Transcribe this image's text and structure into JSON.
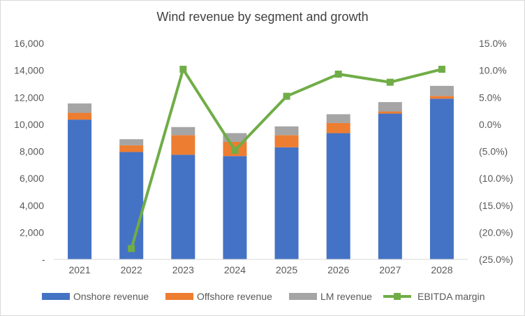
{
  "chart_data": {
    "type": "bar",
    "title": "Wind revenue by segment and growth",
    "categories": [
      "2021",
      "2022",
      "2023",
      "2024",
      "2025",
      "2026",
      "2027",
      "2028"
    ],
    "stacked": true,
    "series": [
      {
        "name": "Onshore revenue",
        "values": [
          10350,
          7950,
          7750,
          7650,
          8300,
          9350,
          10800,
          11900
        ],
        "color": "#4472C4"
      },
      {
        "name": "Offshore revenue",
        "values": [
          500,
          500,
          1450,
          1050,
          900,
          750,
          150,
          200
        ],
        "color": "#ED7D31"
      },
      {
        "name": "LM revenue",
        "values": [
          700,
          450,
          600,
          650,
          650,
          650,
          700,
          750
        ],
        "color": "#A5A5A5"
      }
    ],
    "line_series": {
      "name": "EBITDA margin",
      "values": [
        null,
        -23.0,
        10.2,
        -4.8,
        5.2,
        9.3,
        7.8,
        10.2
      ],
      "color": "#70AD47",
      "axis": "secondary"
    },
    "ylim_left": [
      0,
      16000
    ],
    "left_ticks": [
      "-",
      "2,000",
      "4,000",
      "6,000",
      "8,000",
      "10,000",
      "12,000",
      "14,000",
      "16,000"
    ],
    "ylim_right": [
      -25,
      15
    ],
    "right_ticks": [
      "(25.0%)",
      "(20.0%)",
      "(15.0%)",
      "(10.0%)",
      "(5.0%)",
      "0.0%",
      "5.0%",
      "10.0%",
      "15.0%"
    ],
    "legend_position": "bottom",
    "grid": false
  }
}
